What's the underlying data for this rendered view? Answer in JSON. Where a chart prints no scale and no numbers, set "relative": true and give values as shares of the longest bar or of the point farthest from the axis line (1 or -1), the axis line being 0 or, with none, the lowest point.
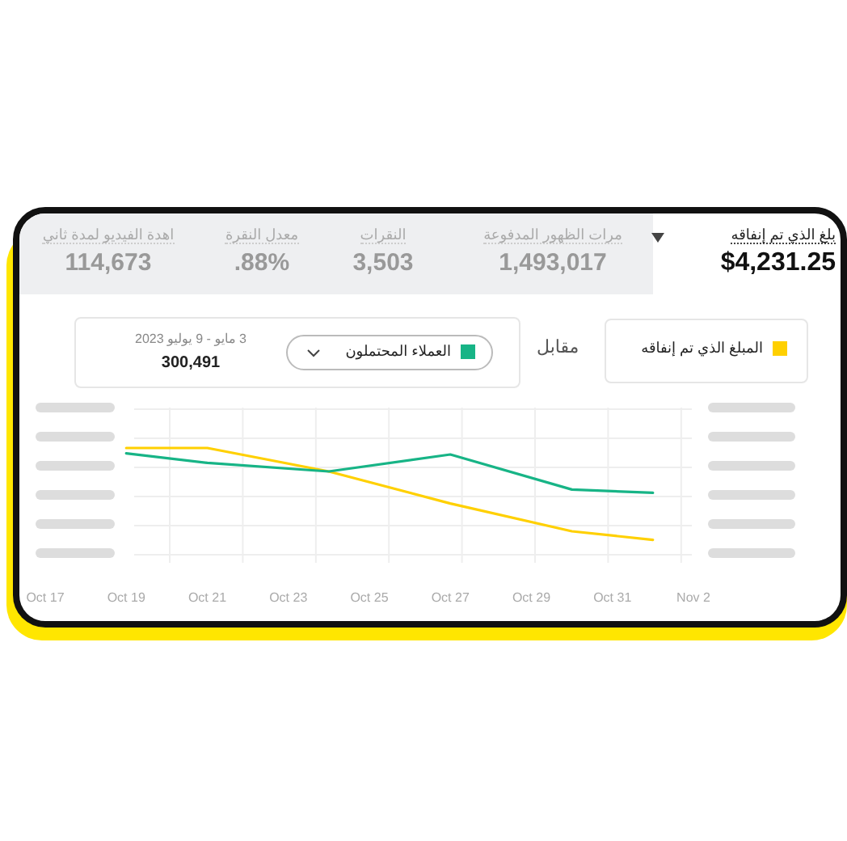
{
  "chart_data": [
    {
      "type": "other",
      "annotations": [
        "بلغ الذي تم إنفاقه",
        "$4,231.25",
        "مرات الظهور المدفوعة",
        "1,493,017",
        "النقرات",
        "3,503",
        "معدل النقرة",
        ".88%",
        "اهدة الفيديو لمدة ثاني",
        "114,673"
      ]
    },
    {
      "type": "line",
      "relative": true,
      "legend": "top",
      "grid": true,
      "annotations": [
        "مقابل",
        "3 مايو - 9 يوليو 2023",
        "300,491"
      ],
      "xlim": [
        "--10-17",
        "--11-02"
      ],
      "xticks": [
        {
          "value": "--10-17",
          "label": "Oct 17"
        },
        {
          "value": "--10-19",
          "label": "Oct 19"
        },
        {
          "value": "--10-21",
          "label": "Oct 21"
        },
        {
          "value": "--10-23",
          "label": "Oct 23"
        },
        {
          "value": "--10-25",
          "label": "Oct 25"
        },
        {
          "value": "--10-27",
          "label": "Oct 27"
        },
        {
          "value": "--10-29",
          "label": "Oct 29"
        },
        {
          "value": "--10-31",
          "label": "Oct 31"
        },
        {
          "value": "--11-02",
          "label": "Nov 2"
        }
      ],
      "x": [
        "--10-19",
        "--10-21",
        "--10-24",
        "--10-27",
        "--10-30",
        "--11-01"
      ],
      "series": [
        {
          "name": "المبلغ الذي تم إنفاقه",
          "color": "#ffd000",
          "values": [
            1,
            1,
            0.78,
            0.48,
            0.22,
            0.14
          ]
        },
        {
          "name": "العملاء المحتملون",
          "color": "#17b486",
          "values": [
            0.95,
            0.86,
            0.78,
            0.94,
            0.61,
            0.58
          ]
        }
      ]
    }
  ]
}
